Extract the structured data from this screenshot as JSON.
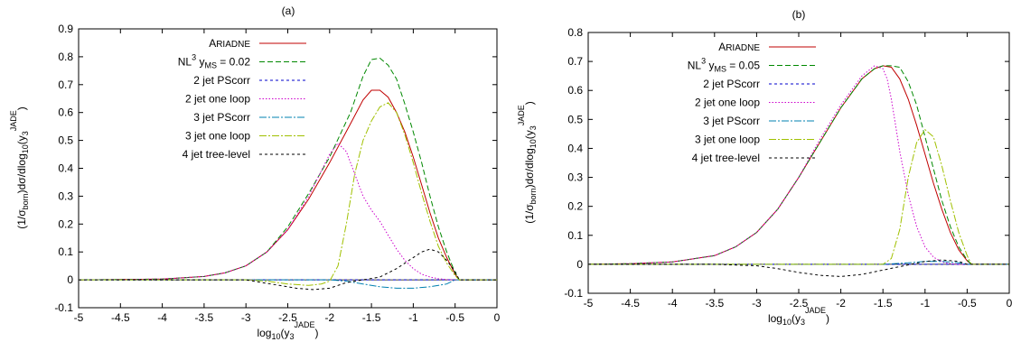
{
  "chart_data": [
    {
      "type": "line",
      "title": "(a)",
      "xlabel": "log10(y3JADE)",
      "ylabel": "(1/σborn)dσ/dlog10(y3JADE)",
      "xlim": [
        -5,
        0
      ],
      "ylim": [
        -0.1,
        0.9
      ],
      "xticks": [
        -5,
        -4.5,
        -4,
        -3.5,
        -3,
        -2.5,
        -2,
        -1.5,
        -1,
        -0.5,
        0
      ],
      "yticks": [
        -0.1,
        0,
        0.1,
        0.2,
        0.3,
        0.4,
        0.5,
        0.6,
        0.7,
        0.8,
        0.9
      ],
      "grid": false,
      "legend_position": "top-left",
      "series": [
        {
          "name": "Ariadne",
          "color": "#c00000",
          "dash": "solid",
          "x": [
            -5,
            -4.5,
            -4,
            -3.5,
            -3.25,
            -3,
            -2.75,
            -2.5,
            -2.25,
            -2,
            -1.75,
            -1.6,
            -1.5,
            -1.4,
            -1.3,
            -1.2,
            -1.1,
            -1,
            -0.9,
            -0.8,
            -0.7,
            -0.6,
            -0.5,
            -0.45,
            0
          ],
          "y": [
            0,
            0.001,
            0.003,
            0.012,
            0.025,
            0.05,
            0.1,
            0.18,
            0.29,
            0.42,
            0.56,
            0.645,
            0.68,
            0.68,
            0.655,
            0.6,
            0.53,
            0.44,
            0.34,
            0.24,
            0.15,
            0.08,
            0.02,
            0,
            0
          ]
        },
        {
          "name": "NL3 yMS = 0.02",
          "color": "#008800",
          "dash": "6,3",
          "x": [
            -5,
            -4.5,
            -4,
            -3.5,
            -3.25,
            -3,
            -2.75,
            -2.5,
            -2.25,
            -2,
            -1.75,
            -1.6,
            -1.5,
            -1.4,
            -1.3,
            -1.2,
            -1.1,
            -1,
            -0.9,
            -0.8,
            -0.7,
            -0.6,
            -0.5,
            -0.45,
            0
          ],
          "y": [
            0,
            0.001,
            0.003,
            0.012,
            0.025,
            0.05,
            0.1,
            0.19,
            0.31,
            0.44,
            0.6,
            0.73,
            0.79,
            0.795,
            0.77,
            0.72,
            0.63,
            0.53,
            0.42,
            0.3,
            0.19,
            0.1,
            0.025,
            0,
            0
          ]
        },
        {
          "name": "2 jet PScorr",
          "color": "#0000cc",
          "dash": "3,3",
          "x": [
            -5,
            -4,
            -3.5,
            -3,
            -2.5,
            -2,
            -1.5,
            -1,
            -0.5,
            0
          ],
          "y": [
            0,
            0,
            0,
            0,
            0,
            0,
            0,
            0,
            0,
            0
          ]
        },
        {
          "name": "2 jet one loop",
          "color": "#cc00cc",
          "dash": "1.5,2",
          "x": [
            -5,
            -4.5,
            -4,
            -3.5,
            -3.25,
            -3,
            -2.75,
            -2.5,
            -2.25,
            -2.1,
            -2,
            -1.9,
            -1.8,
            -1.7,
            -1.6,
            -1.5,
            -1.4,
            -1.3,
            -1.2,
            -1.1,
            -1,
            -0.9,
            -0.8,
            -0.7,
            -0.6,
            -0.5,
            0
          ],
          "y": [
            0,
            0.001,
            0.003,
            0.012,
            0.025,
            0.05,
            0.1,
            0.18,
            0.3,
            0.39,
            0.45,
            0.49,
            0.46,
            0.38,
            0.3,
            0.25,
            0.21,
            0.16,
            0.11,
            0.07,
            0.04,
            0.02,
            0.01,
            0.004,
            0.001,
            0,
            0
          ]
        },
        {
          "name": "3 jet PScorr",
          "color": "#0080b0",
          "dash": "8,2,2,2",
          "x": [
            -5,
            -4,
            -3.5,
            -3,
            -2.5,
            -2,
            -1.8,
            -1.6,
            -1.4,
            -1.2,
            -1,
            -0.8,
            -0.6,
            -0.5,
            0
          ],
          "y": [
            0,
            0,
            0,
            0,
            0,
            0,
            -0.005,
            -0.015,
            -0.025,
            -0.03,
            -0.03,
            -0.025,
            -0.015,
            0,
            0
          ]
        },
        {
          "name": "3 jet one loop",
          "color": "#a0c000",
          "dash": "8,2,2,2",
          "x": [
            -5,
            -4,
            -3.5,
            -3,
            -2.75,
            -2.5,
            -2.25,
            -2.1,
            -2,
            -1.9,
            -1.8,
            -1.7,
            -1.6,
            -1.5,
            -1.4,
            -1.3,
            -1.2,
            -1.1,
            -1,
            -0.9,
            -0.8,
            -0.7,
            -0.6,
            -0.5,
            -0.45,
            0
          ],
          "y": [
            0,
            0,
            0,
            0,
            -0.005,
            -0.015,
            -0.02,
            -0.015,
            -0.005,
            0.05,
            0.2,
            0.38,
            0.5,
            0.57,
            0.62,
            0.635,
            0.6,
            0.52,
            0.42,
            0.31,
            0.21,
            0.12,
            0.06,
            0.015,
            0,
            0
          ]
        },
        {
          "name": "4 jet tree-level",
          "color": "#000000",
          "dash": "3,3",
          "x": [
            -5,
            -3,
            -2.8,
            -2.6,
            -2.4,
            -2.2,
            -2,
            -1.8,
            -1.6,
            -1.4,
            -1.2,
            -1,
            -0.9,
            -0.8,
            -0.7,
            -0.6,
            -0.5,
            -0.45,
            0
          ],
          "y": [
            0,
            0,
            -0.01,
            -0.02,
            -0.03,
            -0.035,
            -0.03,
            -0.01,
            0,
            0.01,
            0.04,
            0.08,
            0.1,
            0.11,
            0.1,
            0.07,
            0.03,
            0,
            0
          ]
        }
      ]
    },
    {
      "type": "line",
      "title": "(b)",
      "xlabel": "log10(y3JADE)",
      "ylabel": "(1/σborn)dσ/dlog10(y3JADE)",
      "xlim": [
        -5,
        0
      ],
      "ylim": [
        -0.1,
        0.8
      ],
      "xticks": [
        -5,
        -4.5,
        -4,
        -3.5,
        -3,
        -2.5,
        -2,
        -1.5,
        -1,
        -0.5,
        0
      ],
      "yticks": [
        -0.1,
        0,
        0.1,
        0.2,
        0.3,
        0.4,
        0.5,
        0.6,
        0.7,
        0.8
      ],
      "grid": false,
      "legend_position": "top-left",
      "series": [
        {
          "name": "Ariadne",
          "color": "#c00000",
          "dash": "solid",
          "x": [
            -5,
            -4.5,
            -4,
            -3.5,
            -3.25,
            -3,
            -2.75,
            -2.5,
            -2.25,
            -2,
            -1.75,
            -1.6,
            -1.5,
            -1.4,
            -1.3,
            -1.2,
            -1.1,
            -1,
            -0.9,
            -0.8,
            -0.7,
            -0.6,
            -0.5,
            -0.45,
            0
          ],
          "y": [
            0,
            0.002,
            0.008,
            0.03,
            0.06,
            0.11,
            0.19,
            0.3,
            0.42,
            0.54,
            0.64,
            0.675,
            0.685,
            0.68,
            0.64,
            0.57,
            0.48,
            0.38,
            0.28,
            0.19,
            0.11,
            0.05,
            0.012,
            0,
            0
          ]
        },
        {
          "name": "NL3 yMS = 0.05",
          "color": "#008800",
          "dash": "6,3",
          "x": [
            -5,
            -4.5,
            -4,
            -3.5,
            -3.25,
            -3,
            -2.75,
            -2.5,
            -2.25,
            -2,
            -1.75,
            -1.6,
            -1.5,
            -1.4,
            -1.3,
            -1.2,
            -1.1,
            -1,
            -0.9,
            -0.8,
            -0.7,
            -0.6,
            -0.5,
            -0.45,
            0
          ],
          "y": [
            0,
            0.002,
            0.008,
            0.03,
            0.06,
            0.11,
            0.19,
            0.3,
            0.42,
            0.54,
            0.64,
            0.675,
            0.685,
            0.685,
            0.68,
            0.63,
            0.55,
            0.44,
            0.33,
            0.22,
            0.13,
            0.06,
            0.015,
            0,
            0
          ]
        },
        {
          "name": "2 jet PScorr",
          "color": "#0000cc",
          "dash": "3,3",
          "x": [
            -5,
            -4,
            -3.5,
            -3,
            -2.5,
            -2,
            -1.5,
            -1,
            -0.5,
            0
          ],
          "y": [
            0,
            0,
            0,
            0,
            0,
            0,
            0,
            0,
            0,
            0
          ]
        },
        {
          "name": "2 jet one loop",
          "color": "#cc00cc",
          "dash": "1.5,2",
          "x": [
            -5,
            -4.5,
            -4,
            -3.5,
            -3.25,
            -3,
            -2.75,
            -2.5,
            -2.25,
            -2,
            -1.75,
            -1.6,
            -1.5,
            -1.45,
            -1.4,
            -1.35,
            -1.3,
            -1.2,
            -1.1,
            -1,
            -0.9,
            -0.8,
            -0.7,
            -0.6,
            -0.5,
            0
          ],
          "y": [
            0,
            0.002,
            0.008,
            0.03,
            0.06,
            0.11,
            0.19,
            0.3,
            0.43,
            0.55,
            0.65,
            0.685,
            0.675,
            0.64,
            0.57,
            0.48,
            0.39,
            0.24,
            0.13,
            0.06,
            0.025,
            0.008,
            0.002,
            0,
            0,
            0
          ]
        },
        {
          "name": "3 jet PScorr",
          "color": "#0080b0",
          "dash": "8,2,2,2",
          "x": [
            -5,
            -3,
            -2.5,
            -2,
            -1.5,
            -1.2,
            -1,
            -0.8,
            -0.6,
            -0.5,
            0
          ],
          "y": [
            0,
            0,
            0,
            0,
            0,
            0.005,
            0.01,
            0.01,
            0.005,
            0,
            0
          ]
        },
        {
          "name": "3 jet one loop",
          "color": "#a0c000",
          "dash": "8,2,2,2",
          "x": [
            -5,
            -3,
            -2.5,
            -2,
            -1.8,
            -1.6,
            -1.5,
            -1.4,
            -1.3,
            -1.2,
            -1.1,
            -1,
            -0.9,
            -0.8,
            -0.7,
            -0.6,
            -0.5,
            -0.45,
            0
          ],
          "y": [
            0,
            0,
            0,
            0,
            0,
            0,
            0,
            0.02,
            0.12,
            0.3,
            0.42,
            0.465,
            0.44,
            0.34,
            0.22,
            0.11,
            0.03,
            0,
            0
          ]
        },
        {
          "name": "4 jet tree-level",
          "color": "#000000",
          "dash": "3,3",
          "x": [
            -5,
            -3.5,
            -3,
            -2.75,
            -2.5,
            -2.25,
            -2,
            -1.75,
            -1.5,
            -1.25,
            -1,
            -0.8,
            -0.6,
            -0.5,
            0
          ],
          "y": [
            0,
            0,
            -0.005,
            -0.015,
            -0.028,
            -0.038,
            -0.042,
            -0.035,
            -0.02,
            -0.005,
            0.01,
            0.015,
            0.01,
            0,
            0
          ]
        }
      ]
    }
  ]
}
